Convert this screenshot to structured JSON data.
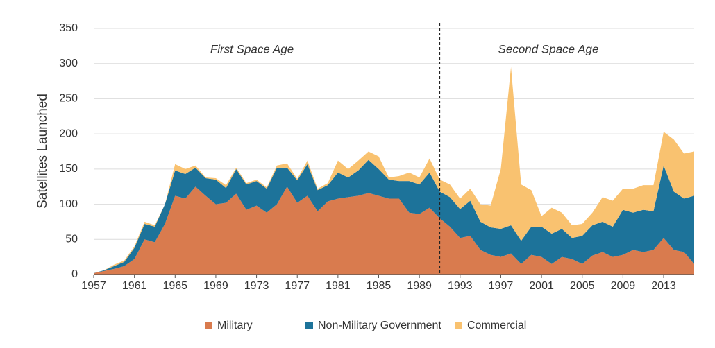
{
  "chart_data": {
    "type": "stacked_area",
    "y_label": "Satellites Launched",
    "annotations": [
      "First Space Age",
      "Second Space Age"
    ],
    "divider": 1991,
    "x": [
      1957,
      1958,
      1959,
      1960,
      1961,
      1962,
      1963,
      1964,
      1965,
      1966,
      1967,
      1968,
      1969,
      1970,
      1971,
      1972,
      1973,
      1974,
      1975,
      1976,
      1977,
      1978,
      1979,
      1980,
      1981,
      1982,
      1983,
      1984,
      1985,
      1986,
      1987,
      1988,
      1989,
      1990,
      1991,
      1992,
      1993,
      1994,
      1995,
      1996,
      1997,
      1998,
      1999,
      2000,
      2001,
      2002,
      2003,
      2004,
      2005,
      2006,
      2007,
      2008,
      2009,
      2010,
      2011,
      2012,
      2013,
      2014,
      2015,
      2016
    ],
    "series": [
      {
        "name": "Military",
        "color": "#d97b4e",
        "values": [
          2,
          5,
          8,
          12,
          22,
          50,
          46,
          72,
          112,
          108,
          125,
          112,
          100,
          102,
          115,
          92,
          98,
          88,
          100,
          125,
          102,
          112,
          90,
          104,
          108,
          110,
          112,
          116,
          112,
          108,
          108,
          88,
          86,
          95,
          80,
          68,
          52,
          55,
          35,
          28,
          25,
          30,
          15,
          28,
          25,
          15,
          25,
          22,
          15,
          27,
          32,
          25,
          28,
          35,
          32,
          35,
          52,
          35,
          32,
          15
        ]
      },
      {
        "name": "Non-Military Government",
        "color": "#1d739a",
        "values": [
          0,
          1,
          4,
          6,
          16,
          22,
          22,
          28,
          36,
          35,
          27,
          25,
          35,
          21,
          35,
          36,
          35,
          34,
          52,
          27,
          32,
          45,
          30,
          23,
          37,
          28,
          36,
          47,
          38,
          27,
          25,
          45,
          42,
          50,
          38,
          42,
          41,
          50,
          40,
          39,
          40,
          40,
          33,
          40,
          43,
          43,
          40,
          30,
          40,
          43,
          43,
          43,
          64,
          53,
          60,
          55,
          103,
          83,
          76,
          97
        ]
      },
      {
        "name": "Commercial",
        "color": "#f9c270",
        "values": [
          0,
          0,
          2,
          2,
          2,
          3,
          2,
          0,
          9,
          7,
          3,
          1,
          2,
          4,
          2,
          2,
          2,
          2,
          3,
          6,
          2,
          5,
          2,
          3,
          17,
          12,
          14,
          12,
          18,
          3,
          7,
          12,
          10,
          20,
          17,
          18,
          15,
          17,
          25,
          31,
          85,
          225,
          80,
          52,
          15,
          37,
          23,
          18,
          17,
          18,
          35,
          37,
          30,
          34,
          35,
          37,
          48,
          74,
          64,
          63
        ]
      }
    ],
    "xlim": [
      1957,
      2016
    ],
    "xticks": [
      1957,
      1961,
      1965,
      1969,
      1973,
      1977,
      1981,
      1985,
      1989,
      1993,
      1997,
      2001,
      2005,
      2009,
      2013
    ],
    "ylim": [
      0,
      350
    ],
    "yticks": [
      0,
      50,
      100,
      150,
      200,
      250,
      300,
      350
    ],
    "grid": true,
    "legend": "bottom"
  }
}
